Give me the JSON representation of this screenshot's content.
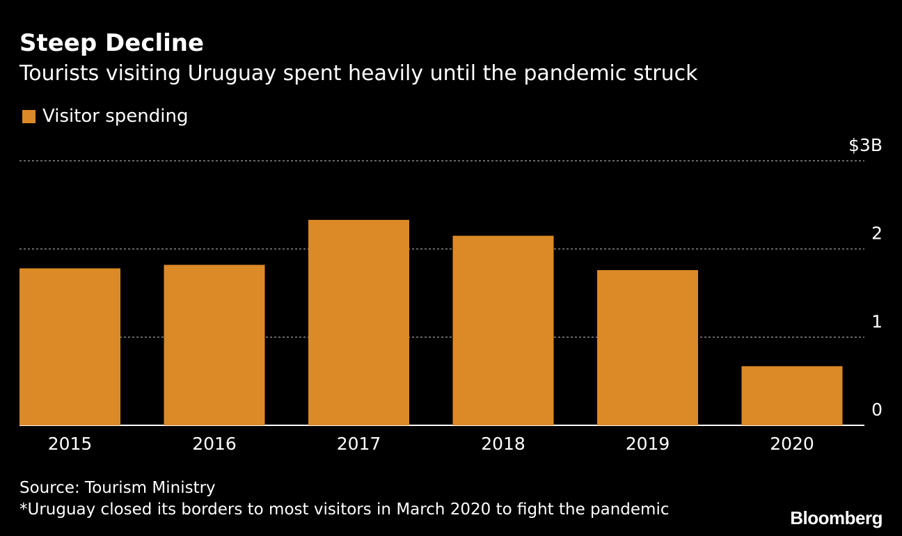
{
  "title": "Steep Decline",
  "subtitle": "Tourists visiting Uruguay spent heavily until the pandemic struck",
  "source": "Source: Tourism Ministry",
  "footnote": "*Uruguay closed its borders to most visitors in March 2020 to fight the pandemic",
  "brand": "Bloomberg",
  "colors": {
    "background": "#000000",
    "bar": "#dc8927",
    "gridline": "#8a8a8a",
    "baseline": "#ffffff",
    "text": "#ffffff"
  },
  "chart_data": {
    "type": "bar",
    "categories": [
      "2015",
      "2016",
      "2017",
      "2018",
      "2019",
      "2020"
    ],
    "series": [
      {
        "name": "Visitor spending",
        "values": [
          1.78,
          1.82,
          2.33,
          2.15,
          1.76,
          0.67
        ]
      }
    ],
    "ylim": [
      0,
      3
    ],
    "yticks": [
      {
        "value": 0,
        "label": "0"
      },
      {
        "value": 1,
        "label": "1"
      },
      {
        "value": 2,
        "label": "2"
      },
      {
        "value": 3,
        "label": "$3B"
      }
    ],
    "grid": true,
    "legend_position": "top-left",
    "yaxis_position": "right"
  }
}
